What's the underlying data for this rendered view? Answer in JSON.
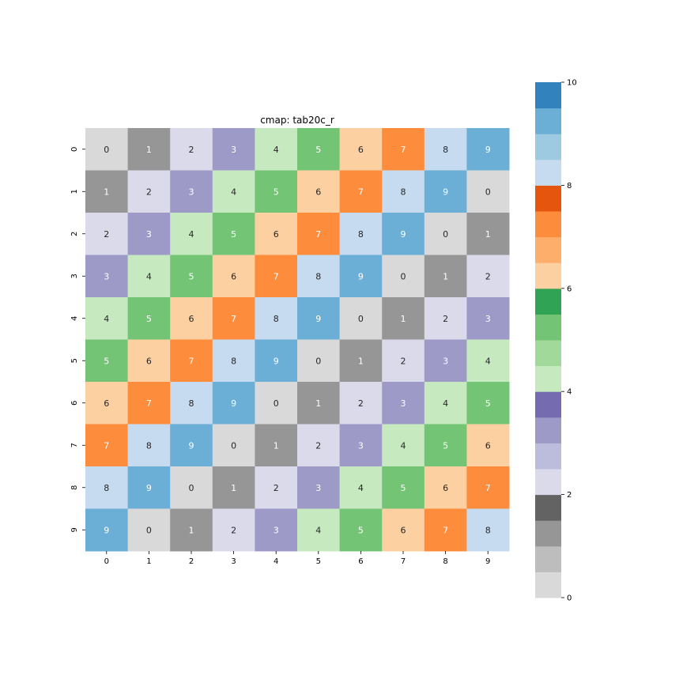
{
  "chart_data": {
    "type": "heatmap",
    "title": "cmap: tab20c_r",
    "xlabel": "",
    "ylabel": "",
    "x_categories": [
      "0",
      "1",
      "2",
      "3",
      "4",
      "5",
      "6",
      "7",
      "8",
      "9"
    ],
    "y_categories": [
      "0",
      "1",
      "2",
      "3",
      "4",
      "5",
      "6",
      "7",
      "8",
      "9"
    ],
    "values": [
      [
        0,
        1,
        2,
        3,
        4,
        5,
        6,
        7,
        8,
        9
      ],
      [
        1,
        2,
        3,
        4,
        5,
        6,
        7,
        8,
        9,
        0
      ],
      [
        2,
        3,
        4,
        5,
        6,
        7,
        8,
        9,
        0,
        1
      ],
      [
        3,
        4,
        5,
        6,
        7,
        8,
        9,
        0,
        1,
        2
      ],
      [
        4,
        5,
        6,
        7,
        8,
        9,
        0,
        1,
        2,
        3
      ],
      [
        5,
        6,
        7,
        8,
        9,
        0,
        1,
        2,
        3,
        4
      ],
      [
        6,
        7,
        8,
        9,
        0,
        1,
        2,
        3,
        4,
        5
      ],
      [
        7,
        8,
        9,
        0,
        1,
        2,
        3,
        4,
        5,
        6
      ],
      [
        8,
        9,
        0,
        1,
        2,
        3,
        4,
        5,
        6,
        7
      ],
      [
        9,
        0,
        1,
        2,
        3,
        4,
        5,
        6,
        7,
        8
      ]
    ],
    "annotations": true,
    "vmin": 0,
    "vmax": 10,
    "colorbar": {
      "ticks": [
        0,
        2,
        4,
        6,
        8,
        10
      ],
      "colors": [
        "#d9d9d9",
        "#bdbdbd",
        "#969696",
        "#636363",
        "#dadaeb",
        "#bcbddc",
        "#9e9ac8",
        "#756bb1",
        "#c7e9c0",
        "#a1d99b",
        "#74c476",
        "#31a354",
        "#fdd0a2",
        "#fdae6b",
        "#fd8d3c",
        "#e6550d",
        "#c6dbef",
        "#9ecae1",
        "#6baed6",
        "#3182bd"
      ]
    },
    "colors": {
      "0": "#d9d9d9",
      "1": "#969696",
      "2": "#dadaeb",
      "3": "#9e9ac8",
      "4": "#c7e9c0",
      "5": "#74c476",
      "6": "#fdd0a2",
      "7": "#fd8d3c",
      "8": "#c6dbef",
      "9": "#6baed6"
    },
    "light_text_values": [
      1,
      3,
      5,
      7,
      9
    ]
  }
}
